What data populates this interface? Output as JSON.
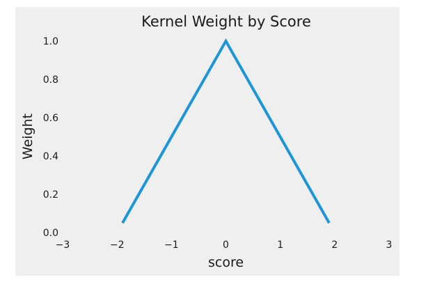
{
  "chart_data": {
    "type": "line",
    "title": "Kernel Weight by Score",
    "xlabel": "score",
    "ylabel": "Weight",
    "xlim": [
      -3,
      3
    ],
    "ylim": [
      0,
      1.0
    ],
    "xticks": [
      -3,
      -2,
      -1,
      0,
      1,
      2,
      3
    ],
    "xtick_labels": [
      "−3",
      "−2",
      "−1",
      "0",
      "1",
      "2",
      "3"
    ],
    "yticks": [
      0.0,
      0.2,
      0.4,
      0.6,
      0.8,
      1.0
    ],
    "ytick_labels": [
      "0.0",
      "0.2",
      "0.4",
      "0.6",
      "0.8",
      "1.0"
    ],
    "grid": false,
    "series": [
      {
        "x": [
          -1.9,
          0,
          1.9
        ],
        "y": [
          0.05,
          1.0,
          0.05
        ],
        "color": "#1f95d8"
      }
    ]
  },
  "colors": {
    "plot_background": "#efefef",
    "figure_background": "#ffffff",
    "line": "#1f95d8"
  }
}
